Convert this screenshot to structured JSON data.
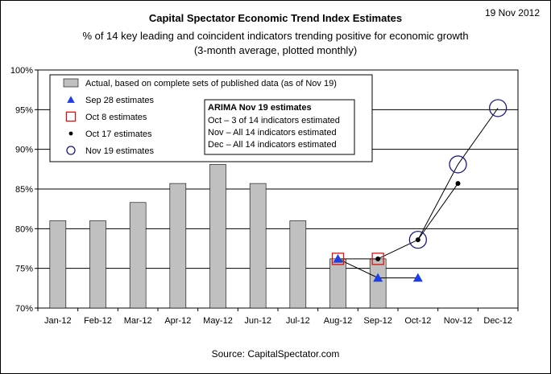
{
  "header": {
    "date": "19 Nov 2012",
    "title": "Capital Spectator Economic Trend Index Estimates",
    "subtitle": "% of 14 key leading and coincident indicators trending positive for economic growth",
    "subtitle2": "(3-month average, plotted monthly)"
  },
  "footer": {
    "source": "Source: CapitalSpectator.com"
  },
  "colors": {
    "bar_fill": "#c0c0c0",
    "sep28": "#1f3fe6",
    "oct8": "#e01010",
    "oct17": "#000000",
    "nov19": "#1a1a80"
  },
  "chart_data": {
    "type": "bar",
    "categories": [
      "Jan-12",
      "Feb-12",
      "Mar-12",
      "Apr-12",
      "May-12",
      "Jun-12",
      "Jul-12",
      "Aug-12",
      "Sep-12",
      "Oct-12",
      "Nov-12",
      "Dec-12"
    ],
    "ylim": [
      70,
      100
    ],
    "yticks": [
      70,
      75,
      80,
      85,
      90,
      95,
      100
    ],
    "ytick_labels": [
      "70%",
      "75%",
      "80%",
      "85%",
      "90%",
      "95%",
      "100%"
    ],
    "grid": true,
    "series": [
      {
        "name": "Actual, based on complete sets of published data (as of Nov 19)",
        "kind": "bar",
        "values": [
          81.0,
          81.0,
          83.3,
          85.7,
          88.1,
          85.7,
          81.0,
          76.2,
          76.2,
          null,
          null,
          null
        ]
      },
      {
        "name": "Sep 28 estimates",
        "kind": "triangle",
        "values": [
          null,
          null,
          null,
          null,
          null,
          null,
          null,
          76.2,
          73.8,
          73.8,
          null,
          null
        ]
      },
      {
        "name": "Oct 8 estimates",
        "kind": "square",
        "values": [
          null,
          null,
          null,
          null,
          null,
          null,
          null,
          76.2,
          76.2,
          null,
          null,
          null
        ]
      },
      {
        "name": "Oct 17 estimates",
        "kind": "dot",
        "values": [
          null,
          null,
          null,
          null,
          null,
          null,
          null,
          null,
          76.2,
          78.6,
          85.7,
          null
        ]
      },
      {
        "name": "Nov 19 estimates",
        "kind": "circle",
        "values": [
          null,
          null,
          null,
          null,
          null,
          null,
          null,
          null,
          null,
          78.6,
          88.1,
          95.2
        ]
      }
    ],
    "legend_placement": "top-left",
    "annotation": {
      "title": "ARIMA Nov 19 estimates",
      "lines": [
        "Oct –  3 of 14 indicators estimated",
        "Nov – All 14 indicators estimated",
        "Dec – All 14 indicators estimated"
      ]
    }
  }
}
